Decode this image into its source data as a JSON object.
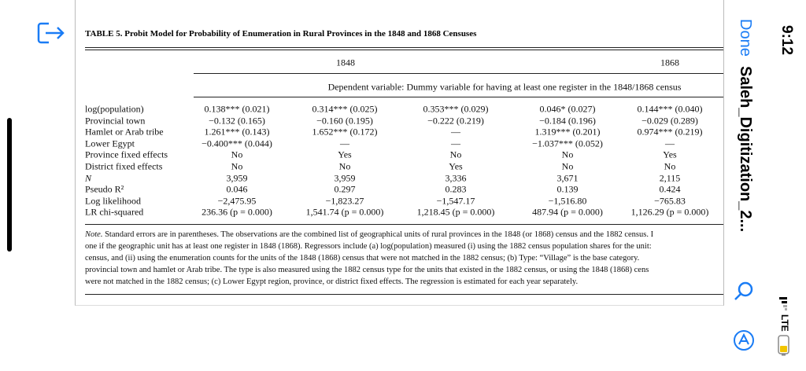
{
  "status": {
    "time": "9:12",
    "network": "LTE"
  },
  "nav": {
    "done": "Done",
    "title": "Saleh_Digitization_2..."
  },
  "table": {
    "title": "TABLE 5. Probit Model for Probability of Enumeration in Rural Provinces in the 1848 and 1868 Censuses",
    "groups": [
      "1848",
      "1868"
    ],
    "subheader": "Dependent variable: Dummy variable for having at least one register in the 1848/1868 census",
    "rows": [
      {
        "label": "log(population)",
        "cells": [
          "0.138*** (0.021)",
          "0.314*** (0.025)",
          "0.353*** (0.029)",
          "0.046* (0.027)",
          "0.144*** (0.040)"
        ]
      },
      {
        "label": "Provincial town",
        "cells": [
          "−0.132 (0.165)",
          "−0.160 (0.195)",
          "−0.222 (0.219)",
          "−0.184 (0.196)",
          "−0.029 (0.289)"
        ]
      },
      {
        "label": "Hamlet or Arab tribe",
        "cells": [
          "1.261*** (0.143)",
          "1.652*** (0.172)",
          "—",
          "1.319*** (0.201)",
          "0.974*** (0.219)"
        ]
      },
      {
        "label": "Lower Egypt",
        "cells": [
          "−0.400*** (0.044)",
          "—",
          "—",
          "−1.037*** (0.052)",
          "—"
        ]
      },
      {
        "label": "Province fixed effects",
        "cells": [
          "No",
          "Yes",
          "No",
          "No",
          "Yes"
        ]
      },
      {
        "label": "District fixed effects",
        "cells": [
          "No",
          "No",
          "Yes",
          "No",
          "No"
        ]
      },
      {
        "label": "N",
        "cells": [
          "3,959",
          "3,959",
          "3,336",
          "3,671",
          "2,115"
        ]
      },
      {
        "label": "Pseudo R²",
        "cells": [
          "0.046",
          "0.297",
          "0.283",
          "0.139",
          "0.424"
        ]
      },
      {
        "label": "Log likelihood",
        "cells": [
          "−2,475.95",
          "−1,823.27",
          "−1,547.17",
          "−1,516.80",
          "−765.83"
        ]
      },
      {
        "label": "LR chi-squared",
        "cells": [
          "236.36 (p = 0.000)",
          "1,541.74 (p = 0.000)",
          "1,218.45 (p = 0.000)",
          "487.94 (p = 0.000)",
          "1,126.29 (p = 0.000)"
        ]
      }
    ],
    "note_label": "Note.",
    "note_lines": [
      "Standard errors are in parentheses. The observations are the combined list of geographical units of rural provinces in the 1848 (or 1868) census and the 1882 census. I",
      "one if the geographic unit has at least one register in 1848 (1868). Regressors include (a) log(population) measured (i) using the 1882 census population shares for the unit:",
      "census, and (ii) using the enumeration counts for the units of the 1848 (1868) census that were not matched in the 1882 census; (b) Type: “Village” is the base category.",
      "provincial town and hamlet or Arab tribe. The type is also measured using the 1882 census type for the units that existed in the 1882 census, or using the 1848 (1868) cens",
      "were not matched in the 1882 census; (c) Lower Egypt region, province, or district fixed effects. The regression is estimated for each year separately."
    ]
  }
}
